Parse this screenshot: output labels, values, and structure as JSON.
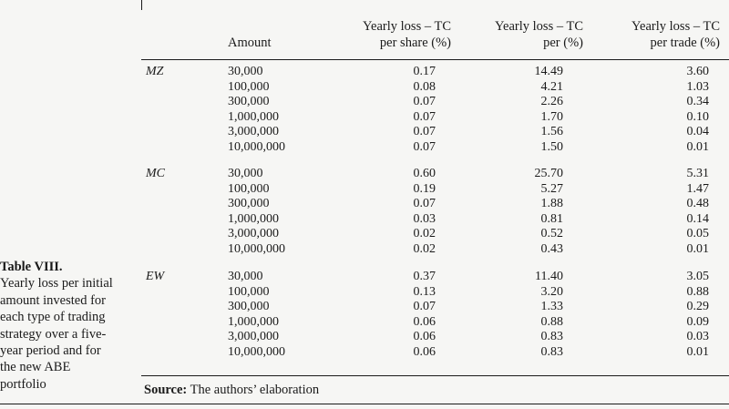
{
  "caption": {
    "title": "Table VIII.",
    "lines": [
      "Yearly loss per initial",
      "amount invested for",
      "each type of trading",
      "strategy over a five-",
      "year period and for",
      "the new ABE",
      "portfolio"
    ]
  },
  "header": {
    "amount": "Amount",
    "col1": [
      "Yearly loss – TC",
      "per share (%)"
    ],
    "col2": [
      "Yearly loss – TC",
      "per (%)"
    ],
    "col3": [
      "Yearly loss – TC",
      "per trade (%)"
    ]
  },
  "groups": [
    {
      "label": "MZ",
      "rows": [
        {
          "amount": "30,000",
          "c1": "0.17",
          "c2": "14.49",
          "c3": "3.60"
        },
        {
          "amount": "100,000",
          "c1": "0.08",
          "c2": "4.21",
          "c3": "1.03"
        },
        {
          "amount": "300,000",
          "c1": "0.07",
          "c2": "2.26",
          "c3": "0.34"
        },
        {
          "amount": "1,000,000",
          "c1": "0.07",
          "c2": "1.70",
          "c3": "0.10"
        },
        {
          "amount": "3,000,000",
          "c1": "0.07",
          "c2": "1.56",
          "c3": "0.04"
        },
        {
          "amount": "10,000,000",
          "c1": "0.07",
          "c2": "1.50",
          "c3": "0.01"
        }
      ]
    },
    {
      "label": "MC",
      "rows": [
        {
          "amount": "30,000",
          "c1": "0.60",
          "c2": "25.70",
          "c3": "5.31"
        },
        {
          "amount": "100,000",
          "c1": "0.19",
          "c2": "5.27",
          "c3": "1.47"
        },
        {
          "amount": "300,000",
          "c1": "0.07",
          "c2": "1.88",
          "c3": "0.48"
        },
        {
          "amount": "1,000,000",
          "c1": "0.03",
          "c2": "0.81",
          "c3": "0.14"
        },
        {
          "amount": "3,000,000",
          "c1": "0.02",
          "c2": "0.52",
          "c3": "0.05"
        },
        {
          "amount": "10,000,000",
          "c1": "0.02",
          "c2": "0.43",
          "c3": "0.01"
        }
      ]
    },
    {
      "label": "EW",
      "rows": [
        {
          "amount": "30,000",
          "c1": "0.37",
          "c2": "11.40",
          "c3": "3.05"
        },
        {
          "amount": "100,000",
          "c1": "0.13",
          "c2": "3.20",
          "c3": "0.88"
        },
        {
          "amount": "300,000",
          "c1": "0.07",
          "c2": "1.33",
          "c3": "0.29"
        },
        {
          "amount": "1,000,000",
          "c1": "0.06",
          "c2": "0.88",
          "c3": "0.09"
        },
        {
          "amount": "3,000,000",
          "c1": "0.06",
          "c2": "0.83",
          "c3": "0.03"
        },
        {
          "amount": "10,000,000",
          "c1": "0.06",
          "c2": "0.83",
          "c3": "0.01"
        }
      ]
    }
  ],
  "source": {
    "label": "Source:",
    "text": "The authors’ elaboration"
  }
}
